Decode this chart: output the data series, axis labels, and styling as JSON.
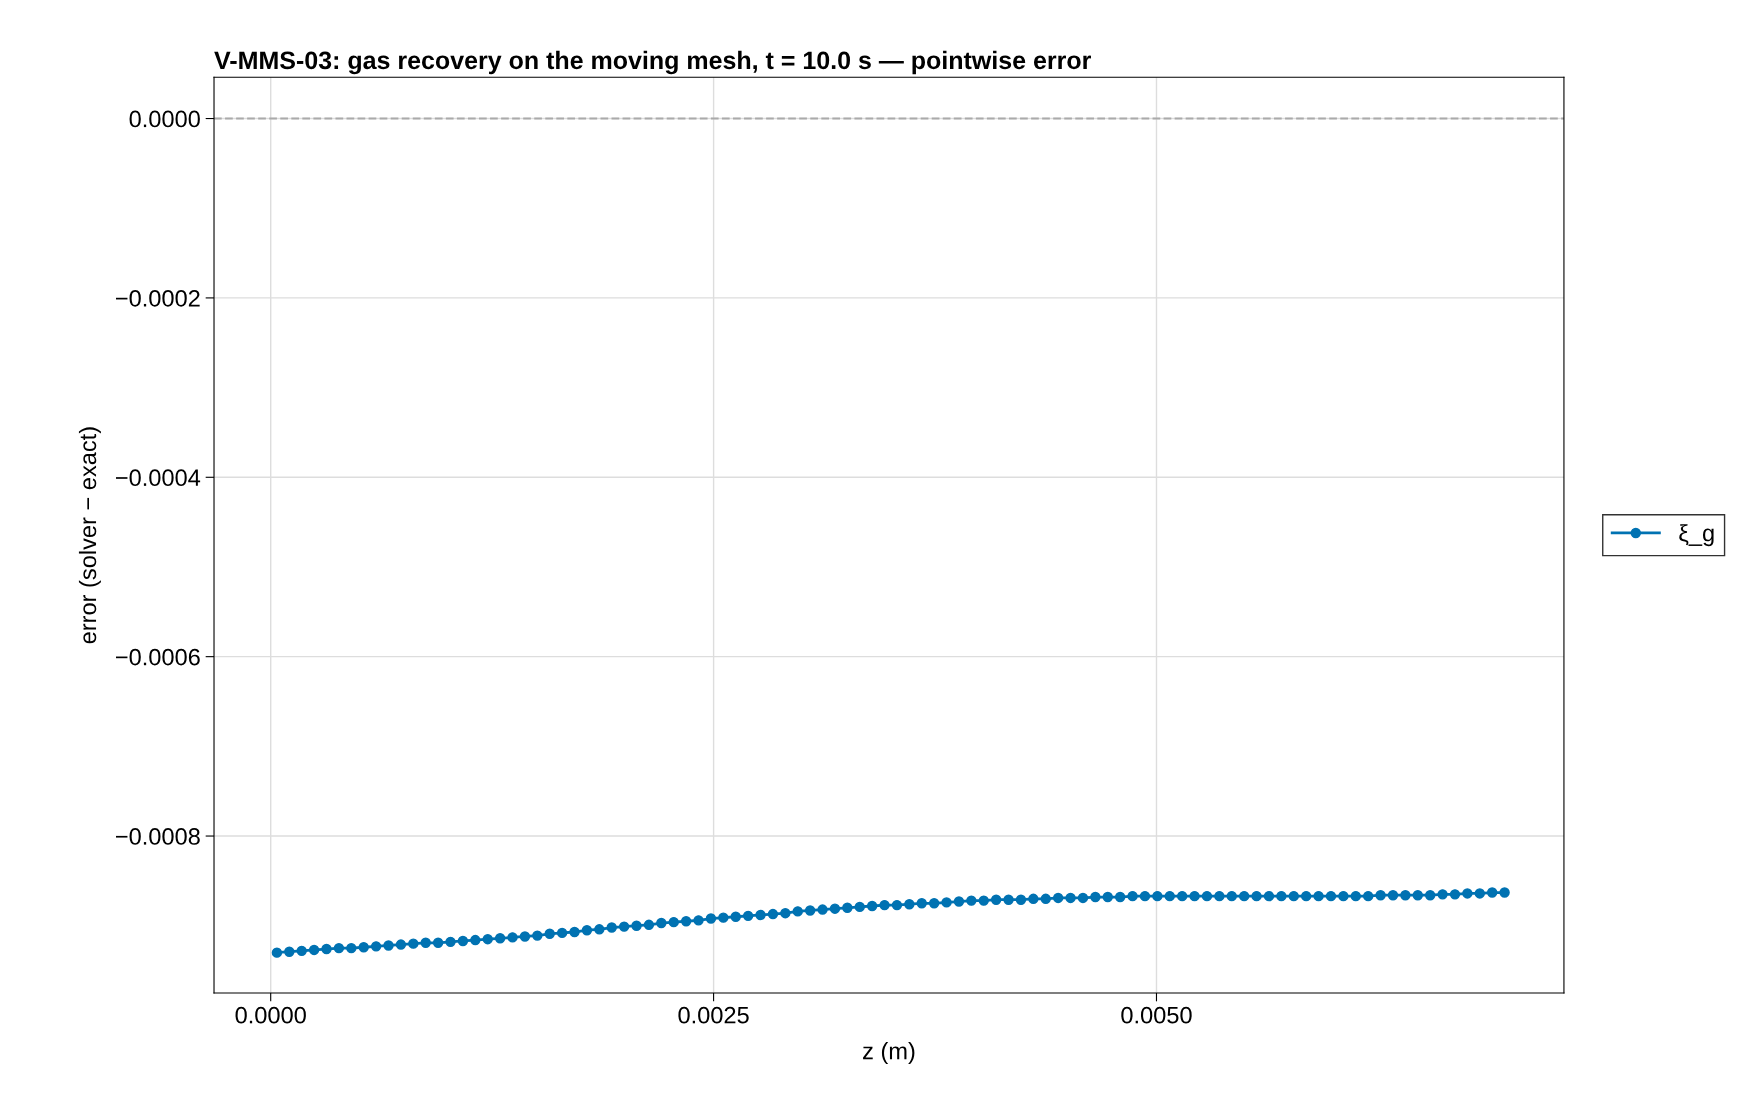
{
  "chart_data": {
    "type": "line",
    "title": "V-MMS-03: gas recovery on the moving mesh, t = 10.0 s — pointwise error",
    "xlabel": "z (m)",
    "ylabel": "error (solver − exact)",
    "x": [
      3.5e-05,
      0.000105,
      0.000175,
      0.000245,
      0.000315,
      0.000385,
      0.000455,
      0.000525,
      0.000595,
      0.000665,
      0.000735,
      0.000805,
      0.000875,
      0.000945,
      0.001015,
      0.001085,
      0.001155,
      0.001225,
      0.001295,
      0.001365,
      0.001435,
      0.001505,
      0.001575,
      0.001645,
      0.001715,
      0.001785,
      0.001855,
      0.001925,
      0.001995,
      0.002065,
      0.002135,
      0.002205,
      0.002275,
      0.002345,
      0.002415,
      0.002485,
      0.002555,
      0.002625,
      0.002695,
      0.002765,
      0.002835,
      0.002905,
      0.002975,
      0.003045,
      0.003115,
      0.003185,
      0.003255,
      0.003325,
      0.003395,
      0.003465,
      0.003535,
      0.003605,
      0.003675,
      0.003745,
      0.003815,
      0.003885,
      0.003955,
      0.004025,
      0.004095,
      0.004165,
      0.004235,
      0.004305,
      0.004375,
      0.004445,
      0.004515,
      0.004585,
      0.004655,
      0.004725,
      0.004795,
      0.004865,
      0.004935,
      0.005005,
      0.005075,
      0.005145,
      0.005215,
      0.005285,
      0.005355,
      0.005425,
      0.005495,
      0.005565,
      0.005635,
      0.005705,
      0.005775,
      0.005845,
      0.005915,
      0.005985,
      0.006055,
      0.006125,
      0.006195,
      0.006265,
      0.006335,
      0.006405,
      0.006475,
      0.006545,
      0.006615,
      0.006685,
      0.006755,
      0.006825,
      0.006895,
      0.006965
    ],
    "series": [
      {
        "name": "ξ_g",
        "color": "#0072b2",
        "values": [
          -0.00093,
          -0.000929,
          -0.000928,
          -0.000927,
          -0.000926,
          -0.000925,
          -0.000925,
          -0.000924,
          -0.000923,
          -0.000922,
          -0.000921,
          -0.00092,
          -0.000919,
          -0.000919,
          -0.000918,
          -0.000917,
          -0.000916,
          -0.000915,
          -0.000914,
          -0.000913,
          -0.000912,
          -0.000911,
          -0.000909,
          -0.000908,
          -0.000907,
          -0.000905,
          -0.000904,
          -0.000902,
          -0.000901,
          -0.0009,
          -0.000899,
          -0.000897,
          -0.000896,
          -0.000895,
          -0.000894,
          -0.000892,
          -0.000891,
          -0.00089,
          -0.000889,
          -0.000888,
          -0.000887,
          -0.000886,
          -0.000884,
          -0.000883,
          -0.000882,
          -0.000881,
          -0.00088,
          -0.000879,
          -0.000878,
          -0.000877,
          -0.000877,
          -0.000876,
          -0.000875,
          -0.000875,
          -0.000874,
          -0.000873,
          -0.000872,
          -0.000872,
          -0.000871,
          -0.000871,
          -0.000871,
          -0.00087,
          -0.00087,
          -0.000869,
          -0.000869,
          -0.000869,
          -0.000868,
          -0.000868,
          -0.000868,
          -0.000867,
          -0.000867,
          -0.000867,
          -0.000867,
          -0.000867,
          -0.000867,
          -0.000867,
          -0.000867,
          -0.000867,
          -0.000867,
          -0.000867,
          -0.000867,
          -0.000867,
          -0.000867,
          -0.000867,
          -0.000867,
          -0.000867,
          -0.000867,
          -0.000867,
          -0.000867,
          -0.000866,
          -0.000866,
          -0.000866,
          -0.000866,
          -0.000866,
          -0.000865,
          -0.000865,
          -0.000864,
          -0.000864,
          -0.000863,
          -0.000863
        ]
      }
    ],
    "xlim": [
      -0.00032,
      0.0073
    ],
    "xticks": [
      {
        "value": 0,
        "label": "0.0000"
      },
      {
        "value": 0.0025,
        "label": "0.0025"
      },
      {
        "value": 0.005,
        "label": "0.0050"
      }
    ],
    "ylim": [
      -0.000975,
      4.6e-05
    ],
    "yticks": [
      {
        "value": -0.0008,
        "label": "−0.0008"
      },
      {
        "value": -0.0006,
        "label": "−0.0006"
      },
      {
        "value": -0.0004,
        "label": "−0.0004"
      },
      {
        "value": -0.0002,
        "label": "−0.0002"
      },
      {
        "value": 0,
        "label": "0.0000"
      }
    ],
    "ref_lines": [
      {
        "axis": "y",
        "value": 0,
        "label": null,
        "color": "#aaaaaa",
        "line_style": "dashed"
      }
    ],
    "grid": true,
    "legend": "right",
    "marker": "circle",
    "line_style": "solid"
  }
}
